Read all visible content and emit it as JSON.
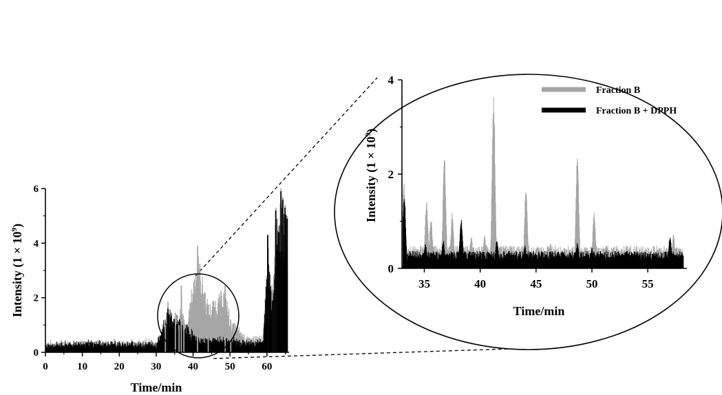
{
  "chart_data": [
    {
      "id": "main",
      "type": "line",
      "xlabel": "Time/min",
      "ylabel": "Intensity (1 × 10",
      "ylabel_sup": "9",
      "ylabel_close": ")",
      "xlim": [
        0,
        66
      ],
      "ylim": [
        0,
        6
      ],
      "xticks": [
        "0",
        "10",
        "20",
        "30",
        "40",
        "50",
        "60"
      ],
      "yticks": [
        "0",
        "2",
        "4",
        "6"
      ],
      "series": [
        {
          "color": "#a6a6a6",
          "x": [
            0,
            10,
            20,
            30,
            32.5,
            33.2,
            34.5,
            35.2,
            36.2,
            36.8,
            37.5,
            38.3,
            41.2,
            44.1,
            48.7,
            50.2,
            55,
            59,
            60.2,
            61.5,
            62.4,
            63.2,
            63.8,
            64.3,
            64.9,
            65.5
          ],
          "y": [
            0.38,
            0.4,
            0.42,
            0.45,
            1.0,
            1.85,
            0.7,
            1.45,
            1.0,
            2.45,
            1.2,
            1.05,
            3.9,
            1.75,
            2.45,
            1.2,
            0.55,
            0.6,
            4.3,
            2.3,
            5.3,
            4.6,
            6.0,
            5.7,
            5.4,
            5.0
          ]
        },
        {
          "color": "#000000",
          "x": [
            0,
            10,
            20,
            30,
            33.2,
            38.3,
            41.5,
            48.7,
            55,
            59,
            60.2,
            61.5,
            62.4,
            63.2,
            63.8,
            64.3,
            64.9,
            65.5
          ],
          "y": [
            0.3,
            0.4,
            0.35,
            0.35,
            1.6,
            1.0,
            0.5,
            0.55,
            0.4,
            0.45,
            4.3,
            1.9,
            5.2,
            4.4,
            5.9,
            5.6,
            5.3,
            4.9
          ]
        }
      ]
    },
    {
      "id": "inset",
      "type": "line",
      "xlabel": "Time/min",
      "ylabel": "Intensity (1 × 10",
      "ylabel_sup": "9",
      "ylabel_close": ")",
      "xlim": [
        33,
        58.5
      ],
      "ylim": [
        0,
        4
      ],
      "xticks": [
        "35",
        "40",
        "45",
        "50",
        "55"
      ],
      "yticks": [
        "0",
        "2",
        "4"
      ],
      "legend_position": "top-right",
      "series": [
        {
          "name": "Fraction B",
          "color": "#a6a6a6",
          "peaks": [
            [
              33.2,
              1.85
            ],
            [
              35.2,
              1.45
            ],
            [
              35.6,
              1.1
            ],
            [
              36.8,
              2.45
            ],
            [
              37.5,
              1.2
            ],
            [
              38.3,
              1.05
            ],
            [
              39.2,
              0.7
            ],
            [
              40.4,
              0.7
            ],
            [
              41.2,
              3.9
            ],
            [
              44.1,
              1.75
            ],
            [
              46.3,
              0.55
            ],
            [
              48.7,
              2.45
            ],
            [
              50.2,
              1.2
            ],
            [
              54.0,
              0.5
            ],
            [
              57.3,
              0.75
            ]
          ],
          "baseline": 0.42
        },
        {
          "name": "Fraction B + DPPH",
          "color": "#000000",
          "peaks": [
            [
              33.2,
              1.6
            ],
            [
              35.1,
              0.55
            ],
            [
              36.7,
              0.6
            ],
            [
              38.3,
              1.05
            ],
            [
              41.5,
              0.62
            ],
            [
              44.0,
              0.5
            ],
            [
              48.7,
              0.55
            ],
            [
              50.0,
              0.45
            ],
            [
              57.0,
              0.7
            ]
          ],
          "baseline": 0.32
        }
      ]
    }
  ]
}
